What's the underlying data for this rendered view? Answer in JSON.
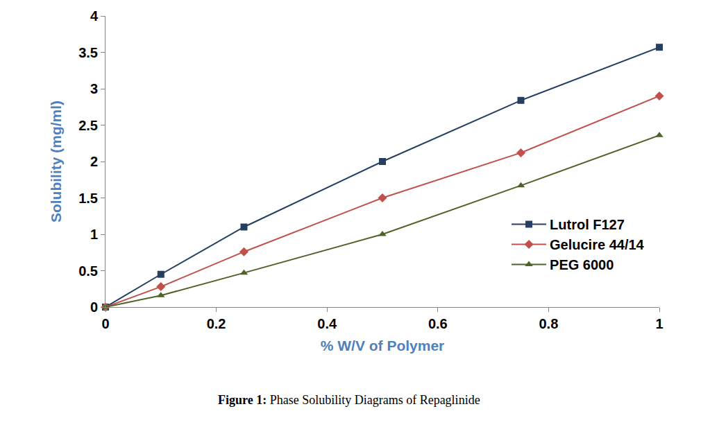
{
  "chart_data": {
    "type": "line",
    "title": "Figure 1: Phase Solubility Diagrams of Repaglinide",
    "x_label": "% W/V of Polymer",
    "y_label": "Solubility (mg/ml)",
    "x": [
      0,
      0.1,
      0.25,
      0.5,
      0.75,
      1
    ],
    "series": [
      {
        "name": "Lutrol F127",
        "color": "#243f60",
        "marker": "square",
        "values": [
          0,
          0.45,
          1.1,
          2.0,
          2.84,
          3.57
        ]
      },
      {
        "name": "Gelucire 44/14",
        "color": "#c0504d",
        "marker": "diamond",
        "values": [
          0,
          0.28,
          0.76,
          1.5,
          2.12,
          2.9
        ]
      },
      {
        "name": "PEG 6000",
        "color": "#4f6228",
        "marker": "triangle-up",
        "values": [
          0,
          0.16,
          0.47,
          1.0,
          1.67,
          2.36
        ]
      }
    ],
    "xlim": [
      0,
      1
    ],
    "xticks": [
      0,
      0.2,
      0.4,
      0.6,
      0.8,
      1
    ],
    "ylim": [
      0,
      4
    ],
    "yticks": [
      0,
      0.5,
      1,
      1.5,
      2,
      2.5,
      3,
      3.5,
      4
    ],
    "grid": false,
    "legend": "lower right"
  }
}
